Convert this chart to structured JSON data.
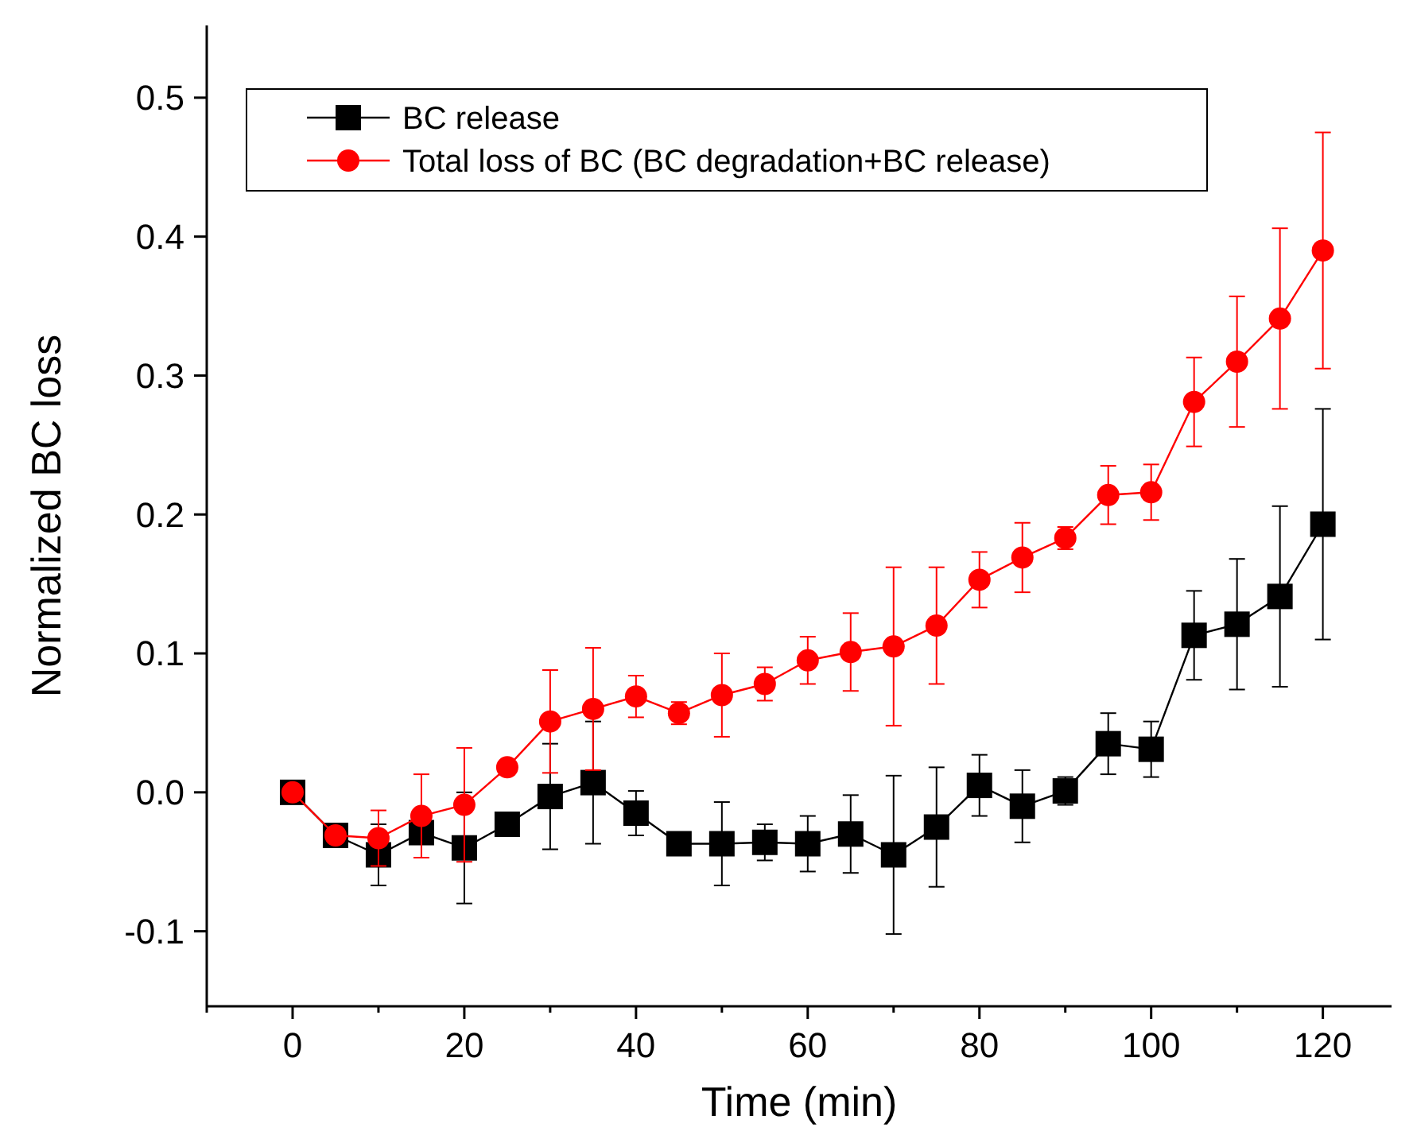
{
  "chart_data": {
    "type": "line",
    "xlabel": "Time (min)",
    "ylabel": "Normalized BC loss",
    "x": [
      0,
      5,
      10,
      15,
      20,
      25,
      30,
      35,
      40,
      45,
      50,
      55,
      60,
      65,
      70,
      75,
      80,
      85,
      90,
      95,
      100,
      105,
      110,
      115,
      120
    ],
    "series": [
      {
        "name": "BC release",
        "color": "#000000",
        "marker": "square",
        "values": [
          0,
          -0.031,
          -0.045,
          -0.029,
          -0.04,
          -0.023,
          -0.003,
          0.007,
          -0.015,
          -0.037,
          -0.037,
          -0.036,
          -0.037,
          -0.03,
          -0.045,
          -0.025,
          0.005,
          -0.01,
          0.001,
          0.035,
          0.031,
          0.113,
          0.121,
          0.141,
          0.193
        ],
        "errors": [
          null,
          null,
          0.022,
          null,
          0.04,
          0.005,
          0.038,
          0.044,
          0.016,
          0.007,
          0.03,
          0.013,
          0.02,
          0.028,
          0.057,
          0.043,
          0.022,
          0.026,
          0.01,
          0.022,
          0.02,
          0.032,
          0.047,
          0.065,
          0.083
        ]
      },
      {
        "name": "Total loss of BC (BC degradation+BC release)",
        "color": "#ff0000",
        "marker": "circle",
        "values": [
          0,
          -0.031,
          -0.033,
          -0.017,
          -0.009,
          0.018,
          0.051,
          0.06,
          0.069,
          0.057,
          0.07,
          0.078,
          0.095,
          0.101,
          0.105,
          0.12,
          0.153,
          0.169,
          0.183,
          0.214,
          0.216,
          0.281,
          0.31,
          0.341,
          0.39
        ],
        "errors": [
          null,
          null,
          0.02,
          0.03,
          0.041,
          0.004,
          0.037,
          0.044,
          0.015,
          0.008,
          0.03,
          0.012,
          0.017,
          0.028,
          0.057,
          0.042,
          0.02,
          0.025,
          0.008,
          0.021,
          0.02,
          0.032,
          0.047,
          0.065,
          0.085
        ]
      }
    ],
    "xlim": [
      -10,
      128
    ],
    "xticks": [
      {
        "value": -10,
        "label": null
      },
      0,
      {
        "value": 10,
        "label": null
      },
      20,
      {
        "value": 30,
        "label": null
      },
      40,
      {
        "value": 50,
        "label": null
      },
      60,
      {
        "value": 70,
        "label": null
      },
      80,
      {
        "value": 90,
        "label": null
      },
      100,
      {
        "value": 110,
        "label": null
      },
      120
    ],
    "ylim": [
      -0.154,
      0.552
    ],
    "yticks": [
      -0.1,
      {
        "value": 0,
        "label": "0.0"
      },
      0.1,
      0.2,
      0.3,
      0.4,
      0.5
    ],
    "legend": "top left",
    "grid": false,
    "line_style": "solid"
  }
}
